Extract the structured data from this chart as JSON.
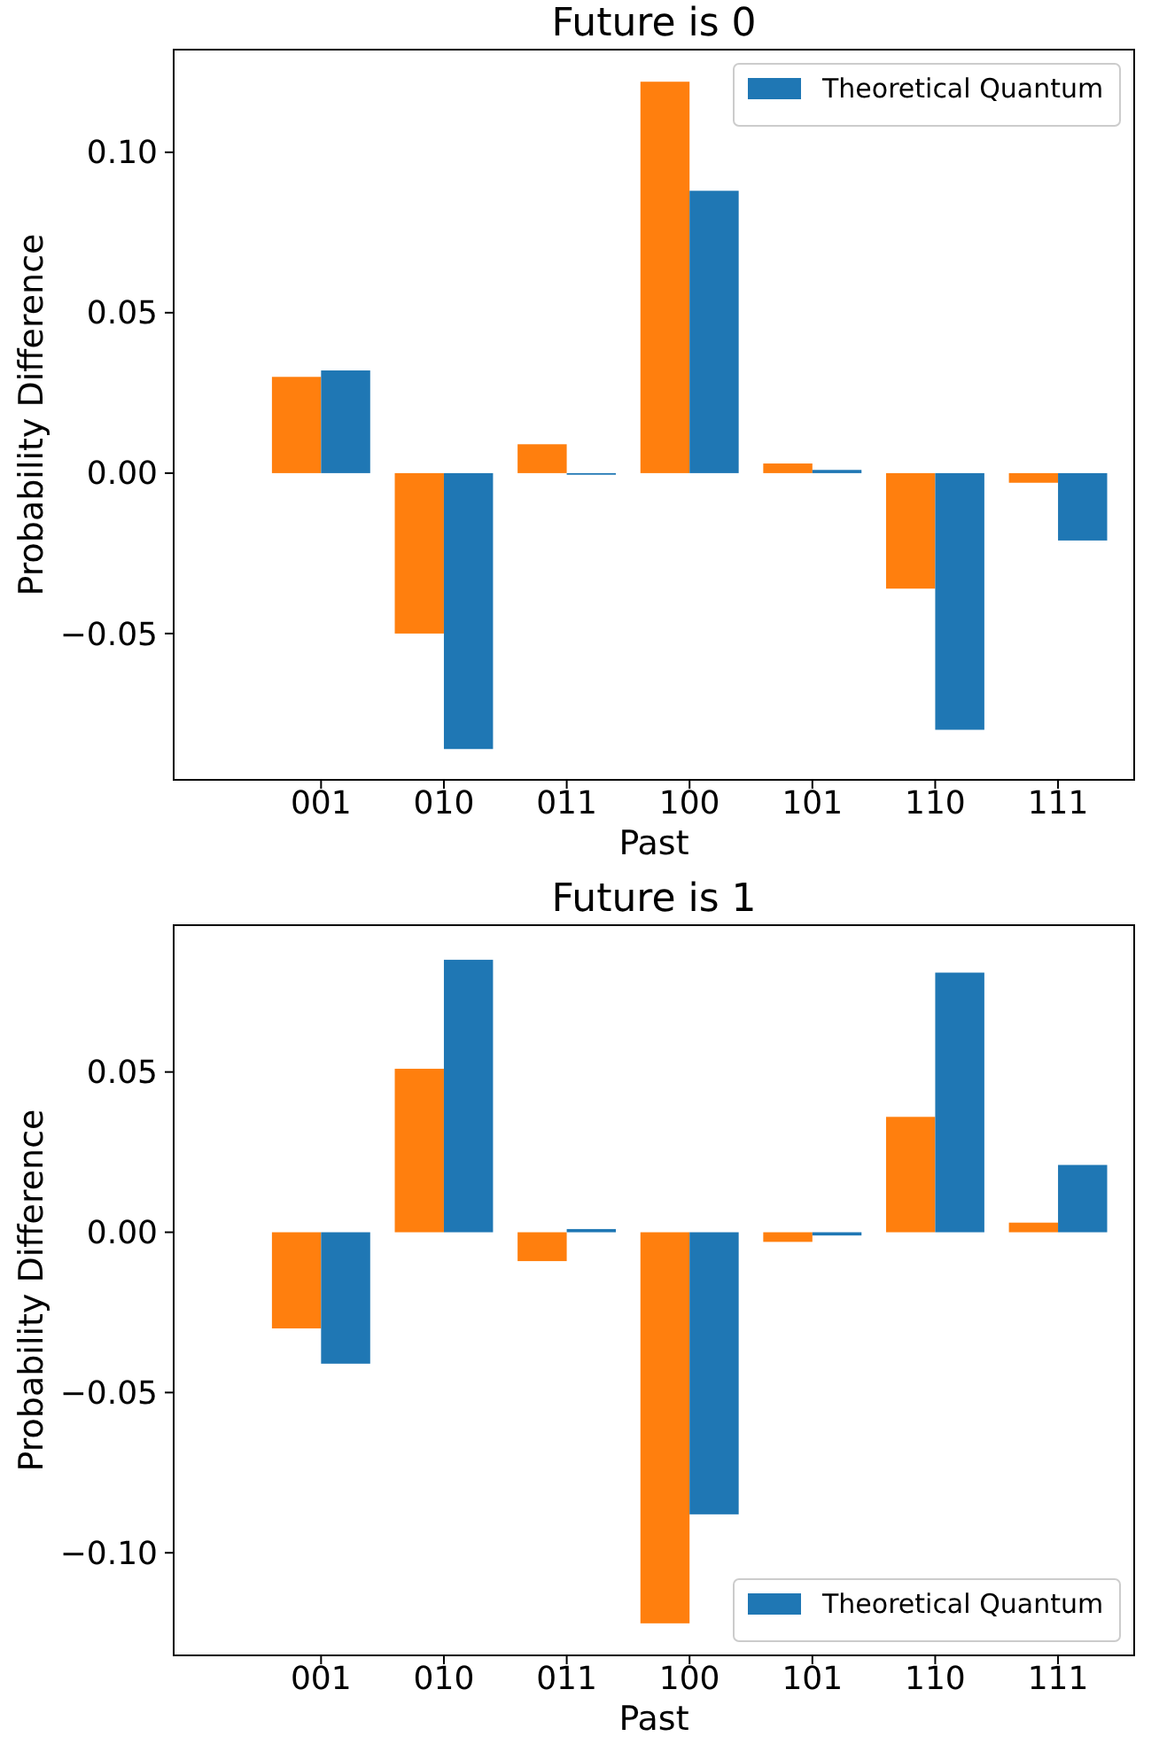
{
  "chart_data": [
    {
      "type": "bar",
      "title": "Future is 0",
      "xlabel": "Past",
      "ylabel": "Probability Difference",
      "categories": [
        "001",
        "010",
        "011",
        "100",
        "101",
        "110",
        "111"
      ],
      "series": [
        {
          "color": "#ff7f0e",
          "values": [
            0.03,
            -0.05,
            0.009,
            0.122,
            0.003,
            -0.036,
            -0.003
          ]
        },
        {
          "name": "Theoretical Quantum",
          "color": "#1f77b4",
          "values": [
            0.032,
            -0.086,
            -0.0005,
            0.088,
            0.001,
            -0.08,
            -0.021
          ]
        }
      ],
      "ylim": [
        -0.0956,
        0.132
      ],
      "yticks": [
        {
          "value": -0.05,
          "label": "−0.05"
        },
        {
          "value": 0,
          "label": "0.00"
        },
        {
          "value": 0.05,
          "label": "0.05"
        },
        {
          "value": 0.1,
          "label": "0.10"
        }
      ],
      "legend": "top right",
      "grid": false
    },
    {
      "type": "bar",
      "title": "Future is 1",
      "xlabel": "Past",
      "ylabel": "Probability Difference",
      "categories": [
        "001",
        "010",
        "011",
        "100",
        "101",
        "110",
        "111"
      ],
      "series": [
        {
          "color": "#ff7f0e",
          "values": [
            -0.03,
            0.051,
            -0.009,
            -0.122,
            -0.003,
            0.036,
            0.003
          ]
        },
        {
          "name": "Theoretical Quantum",
          "color": "#1f77b4",
          "values": [
            -0.041,
            0.085,
            0.001,
            -0.088,
            -0.001,
            0.081,
            0.021
          ]
        }
      ],
      "ylim": [
        -0.132,
        0.0958
      ],
      "yticks": [
        {
          "value": -0.1,
          "label": "−0.10"
        },
        {
          "value": -0.05,
          "label": "−0.05"
        },
        {
          "value": 0,
          "label": "0.00"
        },
        {
          "value": 0.05,
          "label": "0.05"
        }
      ],
      "legend": "bottom right",
      "grid": false
    }
  ]
}
